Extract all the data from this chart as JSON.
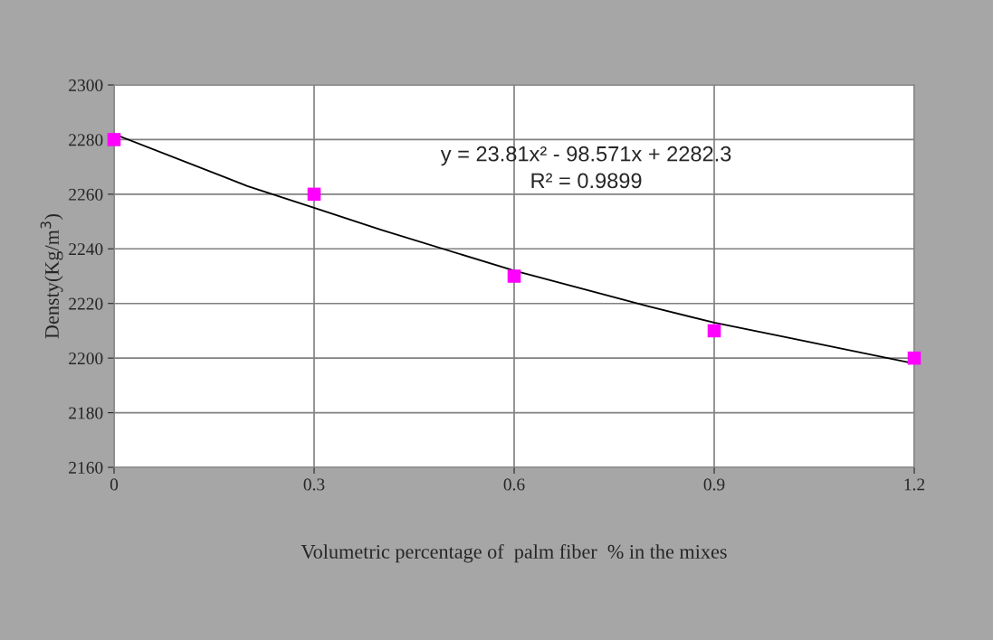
{
  "chart_data": {
    "type": "scatter",
    "xlabel": "Volumetric percentage of  palm fiber  % in the mixes",
    "ylabel": "Densty(Kg/m$^{3}$)",
    "x": [
      0,
      0.3,
      0.6,
      0.9,
      1.2
    ],
    "series": [
      {
        "color": "#ff00ff",
        "marker": "square",
        "values": [
          2280,
          2260,
          2230,
          2210,
          2200
        ]
      },
      {
        "type": "line",
        "color": "#000000",
        "marker": "none",
        "x": [
          0,
          0.2,
          0.3,
          0.4,
          0.6,
          0.8,
          0.9,
          1.0,
          1.2
        ],
        "values": [
          2282,
          2263,
          2255,
          2247,
          2232,
          2219,
          2213,
          2208,
          2198
        ]
      }
    ],
    "annotations": [
      "y = 23.81x² - 98.571x + 2282.3",
      "R² = 0.9899"
    ],
    "xlim": [
      0,
      1.2
    ],
    "xticks": [
      0,
      0.3,
      0.6,
      0.9,
      1.2
    ],
    "ylim": [
      2160,
      2300
    ],
    "yticks": [
      2160,
      2180,
      2200,
      2220,
      2240,
      2260,
      2280,
      2300
    ],
    "grid": true,
    "legend": false
  }
}
